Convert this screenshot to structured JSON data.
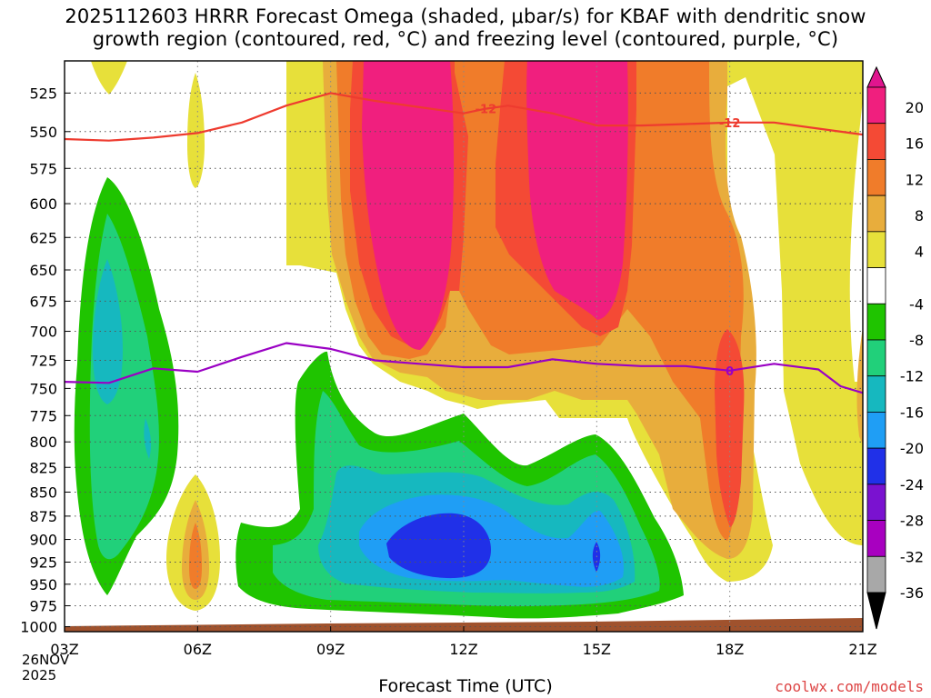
{
  "title": {
    "line1": "2025112603 HRRR Forecast Omega (shaded, μbar/s) for KBAF with dendritic snow",
    "line2": "growth region (contoured, red, °C) and freezing level (contoured, purple, °C)"
  },
  "xlabel": "Forecast Time (UTC)",
  "credit": "coolwx.com/models",
  "date_label": {
    "day": "26NOV",
    "year": "2025"
  },
  "colors": {
    "dgz_contour": "#ee3b2f",
    "freezing_contour": "#9a00c4",
    "ground": "#a0522d",
    "grid": "#555555"
  },
  "chart_data": {
    "type": "heatmap",
    "x_ticks": [
      "03Z",
      "06Z",
      "09Z",
      "12Z",
      "15Z",
      "18Z",
      "21Z"
    ],
    "x_range_hours": [
      3,
      21
    ],
    "y_ticks": [
      525,
      550,
      575,
      600,
      625,
      650,
      675,
      700,
      725,
      750,
      775,
      800,
      825,
      850,
      875,
      900,
      925,
      950,
      975,
      1000
    ],
    "y_range_mb": [
      505,
      1006
    ],
    "y_scale": "log-pressure",
    "colorbar": {
      "labels": [
        "20",
        "16",
        "12",
        "8",
        "4",
        "-4",
        "-8",
        "-12",
        "-16",
        "-20",
        "-24",
        "-28",
        "-32",
        "-36"
      ],
      "bins": [
        {
          "range": "16 to 20",
          "color": "#f01f7e"
        },
        {
          "range": "12 to 16",
          "color": "#f44a35"
        },
        {
          "range": "8 to 12",
          "color": "#f07c2a"
        },
        {
          "range": "4 to 8",
          "color": "#e8ad3c"
        },
        {
          "range": "above 4 (light)",
          "color": "#e7e03a"
        },
        {
          "range": "-4 to 4",
          "color": "#ffffff"
        },
        {
          "range": "-8 to -4",
          "color": "#1fc400"
        },
        {
          "range": "-12 to -8",
          "color": "#21d07a"
        },
        {
          "range": "-16 to -12",
          "color": "#16b8bf"
        },
        {
          "range": "-20 to -16",
          "color": "#1f9ef5"
        },
        {
          "range": "-24 to -20",
          "color": "#2030e8"
        },
        {
          "range": "-28 to -24",
          "color": "#7a12d0"
        },
        {
          "range": "-32 to -28",
          "color": "#a800c0"
        },
        {
          "range": "-36 to -32",
          "color": "#a8a8a8"
        },
        {
          "range": "below -36",
          "color": "#000000"
        }
      ],
      "top_arrow_color": "#e0158e"
    },
    "dgz_contour": {
      "label": "-12",
      "points": [
        {
          "hour": 3.0,
          "mb": 555
        },
        {
          "hour": 4.0,
          "mb": 556
        },
        {
          "hour": 5.0,
          "mb": 554
        },
        {
          "hour": 6.0,
          "mb": 551
        },
        {
          "hour": 7.0,
          "mb": 544
        },
        {
          "hour": 8.0,
          "mb": 533
        },
        {
          "hour": 9.0,
          "mb": 525
        },
        {
          "hour": 10.0,
          "mb": 530
        },
        {
          "hour": 11.0,
          "mb": 534
        },
        {
          "hour": 12.0,
          "mb": 538
        },
        {
          "hour": 12.5,
          "mb": 535
        },
        {
          "hour": 13.0,
          "mb": 533
        },
        {
          "hour": 14.0,
          "mb": 538
        },
        {
          "hour": 15.0,
          "mb": 546
        },
        {
          "hour": 16.0,
          "mb": 546
        },
        {
          "hour": 17.0,
          "mb": 545
        },
        {
          "hour": 18.0,
          "mb": 544
        },
        {
          "hour": 19.0,
          "mb": 544
        },
        {
          "hour": 20.0,
          "mb": 548
        },
        {
          "hour": 21.0,
          "mb": 552
        }
      ]
    },
    "freezing_contour": {
      "label": "0",
      "points": [
        {
          "hour": 3.0,
          "mb": 744
        },
        {
          "hour": 4.0,
          "mb": 745
        },
        {
          "hour": 5.0,
          "mb": 732
        },
        {
          "hour": 6.0,
          "mb": 735
        },
        {
          "hour": 7.0,
          "mb": 722
        },
        {
          "hour": 8.0,
          "mb": 710
        },
        {
          "hour": 9.0,
          "mb": 715
        },
        {
          "hour": 10.0,
          "mb": 725
        },
        {
          "hour": 11.0,
          "mb": 728
        },
        {
          "hour": 12.0,
          "mb": 731
        },
        {
          "hour": 13.0,
          "mb": 731
        },
        {
          "hour": 14.0,
          "mb": 724
        },
        {
          "hour": 15.0,
          "mb": 728
        },
        {
          "hour": 16.0,
          "mb": 730
        },
        {
          "hour": 17.0,
          "mb": 730
        },
        {
          "hour": 18.0,
          "mb": 734
        },
        {
          "hour": 19.0,
          "mb": 728
        },
        {
          "hour": 20.0,
          "mb": 733
        },
        {
          "hour": 20.5,
          "mb": 748
        },
        {
          "hour": 21.0,
          "mb": 754
        }
      ]
    },
    "ground_pressure_mb": [
      {
        "hour": 3.0,
        "mb": 1002
      },
      {
        "hour": 9.0,
        "mb": 999
      },
      {
        "hour": 15.0,
        "mb": 998
      },
      {
        "hour": 21.0,
        "mb": 995
      }
    ]
  }
}
